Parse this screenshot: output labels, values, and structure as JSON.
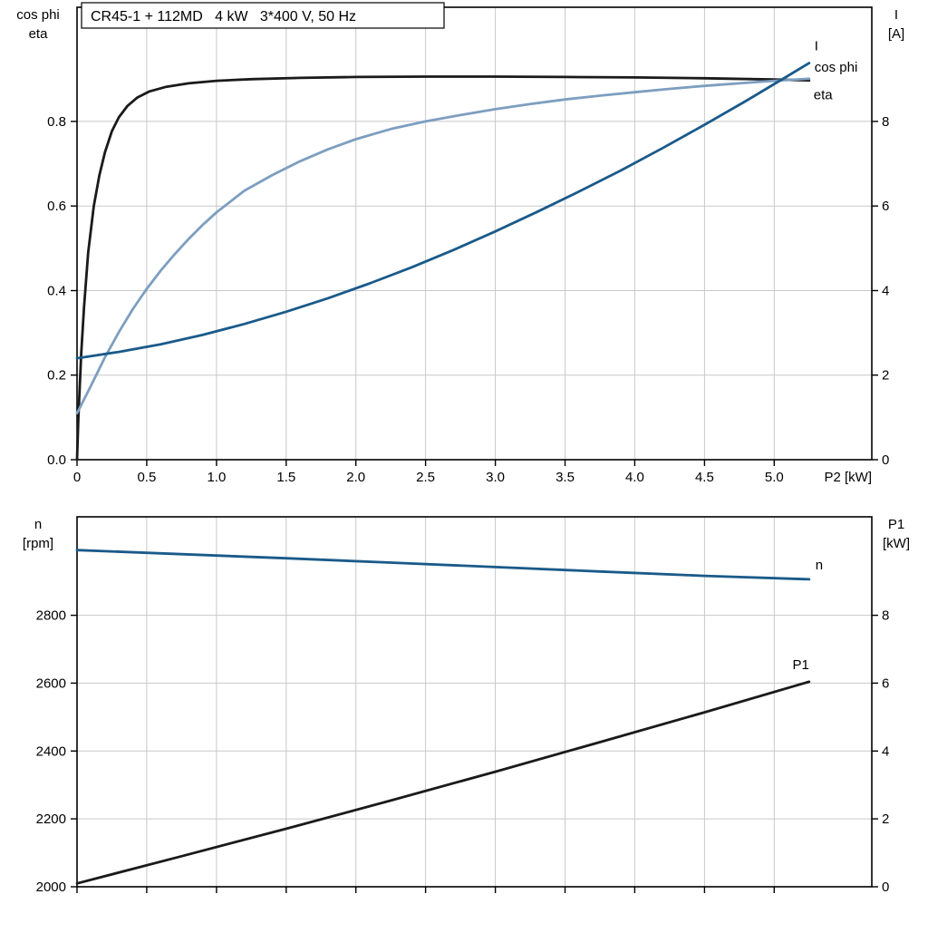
{
  "page": {
    "background": "#ffffff"
  },
  "colors": {
    "black": "#1a1a1a",
    "dark_blue": "#1a5a8a",
    "light_blue": "#7d9ec0",
    "grid": "#c8c8c8",
    "frame": "#000000"
  },
  "chart_data": [
    {
      "name": "motor-efficiency",
      "type": "line",
      "title": "CR45-1 + 112MD   4 kW   3*400 V, 50 Hz",
      "grid": true,
      "x_axis": {
        "label": "P2 [kW]",
        "min": 0,
        "max": 5.7,
        "tick_values": [
          0,
          0.5,
          1.0,
          1.5,
          2.0,
          2.5,
          3.0,
          3.5,
          4.0,
          4.5,
          5.0
        ],
        "tick_labels": [
          "0",
          "0.5",
          "1.0",
          "1.5",
          "2.0",
          "2.5",
          "3.0",
          "3.5",
          "4.0",
          "4.5",
          "5.0"
        ]
      },
      "left_axis": {
        "title_lines": [
          "cos phi",
          "eta"
        ],
        "min": 0,
        "max": 1.07,
        "tick_values": [
          0,
          0.2,
          0.4,
          0.6,
          0.8
        ],
        "tick_labels": [
          "0.0",
          "0.2",
          "0.4",
          "0.6",
          "0.8"
        ]
      },
      "right_axis": {
        "title_lines": [
          "I",
          "[A]"
        ],
        "min": 0,
        "max": 10.7,
        "tick_values": [
          0,
          2,
          4,
          6,
          8
        ],
        "tick_labels": [
          "0",
          "2",
          "4",
          "6",
          "8"
        ]
      },
      "series": [
        {
          "name": "eta",
          "label": "eta",
          "axis": "left",
          "color": "#1a1a1a",
          "label_offset": [
            5,
            21
          ],
          "points": [
            [
              0,
              0
            ],
            [
              0.01,
              0.1
            ],
            [
              0.03,
              0.25
            ],
            [
              0.05,
              0.36
            ],
            [
              0.08,
              0.49
            ],
            [
              0.12,
              0.6
            ],
            [
              0.16,
              0.672
            ],
            [
              0.2,
              0.727
            ],
            [
              0.25,
              0.777
            ],
            [
              0.3,
              0.81
            ],
            [
              0.36,
              0.836
            ],
            [
              0.43,
              0.856
            ],
            [
              0.52,
              0.871
            ],
            [
              0.64,
              0.882
            ],
            [
              0.8,
              0.89
            ],
            [
              1.0,
              0.896
            ],
            [
              1.25,
              0.9
            ],
            [
              1.6,
              0.903
            ],
            [
              2.0,
              0.905
            ],
            [
              2.5,
              0.906
            ],
            [
              3.0,
              0.906
            ],
            [
              3.5,
              0.905
            ],
            [
              4.0,
              0.904
            ],
            [
              4.5,
              0.902
            ],
            [
              5.0,
              0.899
            ],
            [
              5.25,
              0.897
            ]
          ]
        },
        {
          "name": "cos phi",
          "label": "cos phi",
          "axis": "left",
          "color": "#7d9ec0",
          "label_offset": [
            6,
            -8
          ],
          "points": [
            [
              0,
              0.11
            ],
            [
              0.1,
              0.175
            ],
            [
              0.2,
              0.242
            ],
            [
              0.3,
              0.302
            ],
            [
              0.4,
              0.356
            ],
            [
              0.5,
              0.404
            ],
            [
              0.6,
              0.447
            ],
            [
              0.7,
              0.486
            ],
            [
              0.8,
              0.522
            ],
            [
              0.9,
              0.555
            ],
            [
              1.0,
              0.585
            ],
            [
              1.2,
              0.636
            ],
            [
              1.4,
              0.673
            ],
            [
              1.6,
              0.706
            ],
            [
              1.8,
              0.734
            ],
            [
              2.0,
              0.758
            ],
            [
              2.25,
              0.782
            ],
            [
              2.5,
              0.8
            ],
            [
              2.75,
              0.815
            ],
            [
              3.0,
              0.829
            ],
            [
              3.25,
              0.841
            ],
            [
              3.5,
              0.852
            ],
            [
              3.75,
              0.861
            ],
            [
              4.0,
              0.869
            ],
            [
              4.25,
              0.877
            ],
            [
              4.5,
              0.884
            ],
            [
              4.75,
              0.89
            ],
            [
              5.0,
              0.896
            ],
            [
              5.25,
              0.901
            ]
          ]
        },
        {
          "name": "I",
          "label": "I",
          "axis": "right",
          "color": "#1a5a8a",
          "label_offset": [
            6,
            -14
          ],
          "points": [
            [
              0,
              2.4
            ],
            [
              0.3,
              2.55
            ],
            [
              0.6,
              2.73
            ],
            [
              0.9,
              2.95
            ],
            [
              1.2,
              3.21
            ],
            [
              1.5,
              3.5
            ],
            [
              1.8,
              3.82
            ],
            [
              2.1,
              4.17
            ],
            [
              2.4,
              4.55
            ],
            [
              2.7,
              4.96
            ],
            [
              3.0,
              5.4
            ],
            [
              3.3,
              5.86
            ],
            [
              3.6,
              6.34
            ],
            [
              3.9,
              6.84
            ],
            [
              4.2,
              7.37
            ],
            [
              4.5,
              7.92
            ],
            [
              4.8,
              8.49
            ],
            [
              5.1,
              9.08
            ],
            [
              5.25,
              9.38
            ]
          ]
        }
      ]
    },
    {
      "name": "speed-power",
      "type": "line",
      "title": "",
      "grid": true,
      "x_axis": {
        "label": "",
        "min": 0,
        "max": 5.7,
        "tick_values": [
          0,
          0.5,
          1.0,
          1.5,
          2.0,
          2.5,
          3.0,
          3.5,
          4.0,
          4.5,
          5.0
        ],
        "tick_labels": []
      },
      "left_axis": {
        "title_lines": [
          "n",
          "[rpm]"
        ],
        "min": 2000,
        "max": 3090,
        "tick_values": [
          2000,
          2200,
          2400,
          2600,
          2800
        ],
        "tick_labels": [
          "2000",
          "2200",
          "2400",
          "2600",
          "2800"
        ]
      },
      "right_axis": {
        "title_lines": [
          "P1",
          "[kW]"
        ],
        "min": 0,
        "max": 10.9,
        "tick_values": [
          0,
          2,
          4,
          6,
          8
        ],
        "tick_labels": [
          "0",
          "2",
          "4",
          "6",
          "8"
        ]
      },
      "series": [
        {
          "name": "n",
          "label": "n",
          "axis": "left",
          "color": "#1a5a8a",
          "label_offset": [
            7,
            -11
          ],
          "points": [
            [
              0,
              2992
            ],
            [
              0.75,
              2980
            ],
            [
              1.5,
              2968
            ],
            [
              2.25,
              2955
            ],
            [
              3.0,
              2942
            ],
            [
              3.75,
              2929
            ],
            [
              4.5,
              2916
            ],
            [
              5.25,
              2906
            ]
          ]
        },
        {
          "name": "P1",
          "label": "P1",
          "axis": "right",
          "color": "#1a1a1a",
          "label_offset": [
            0,
            -14
          ],
          "label_anchor": "end",
          "points": [
            [
              0,
              0.1
            ],
            [
              0.75,
              0.9
            ],
            [
              1.5,
              1.71
            ],
            [
              2.25,
              2.54
            ],
            [
              3.0,
              3.39
            ],
            [
              3.75,
              4.26
            ],
            [
              4.5,
              5.14
            ],
            [
              5.25,
              6.04
            ]
          ]
        }
      ]
    }
  ]
}
